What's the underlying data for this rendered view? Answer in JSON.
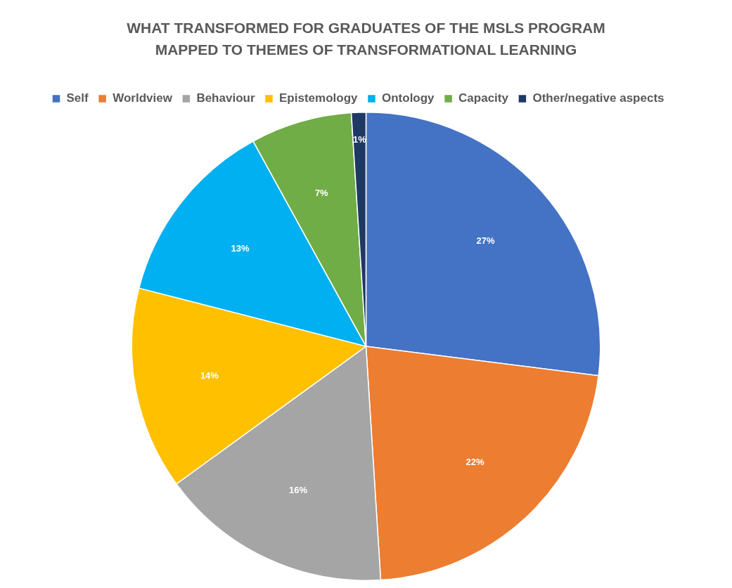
{
  "chart_data": {
    "type": "pie",
    "title": "WHAT TRANSFORMED FOR GRADUATES OF THE MSLS PROGRAM MAPPED TO THEMES OF TRANSFORMATIONAL LEARNING",
    "categories": [
      "Self",
      "Worldview",
      "Behaviour",
      "Epistemology",
      "Ontology",
      "Capacity",
      "Other/negative aspects"
    ],
    "values": [
      27,
      22,
      16,
      14,
      13,
      7,
      1
    ],
    "colors": [
      "#4472c4",
      "#ed7d31",
      "#a5a5a5",
      "#ffc000",
      "#00b0f0",
      "#70ad47",
      "#1f3864"
    ],
    "value_labels": [
      "27%",
      "22%",
      "16%",
      "14%",
      "13%",
      "7%",
      "1%"
    ],
    "legend": "top"
  }
}
